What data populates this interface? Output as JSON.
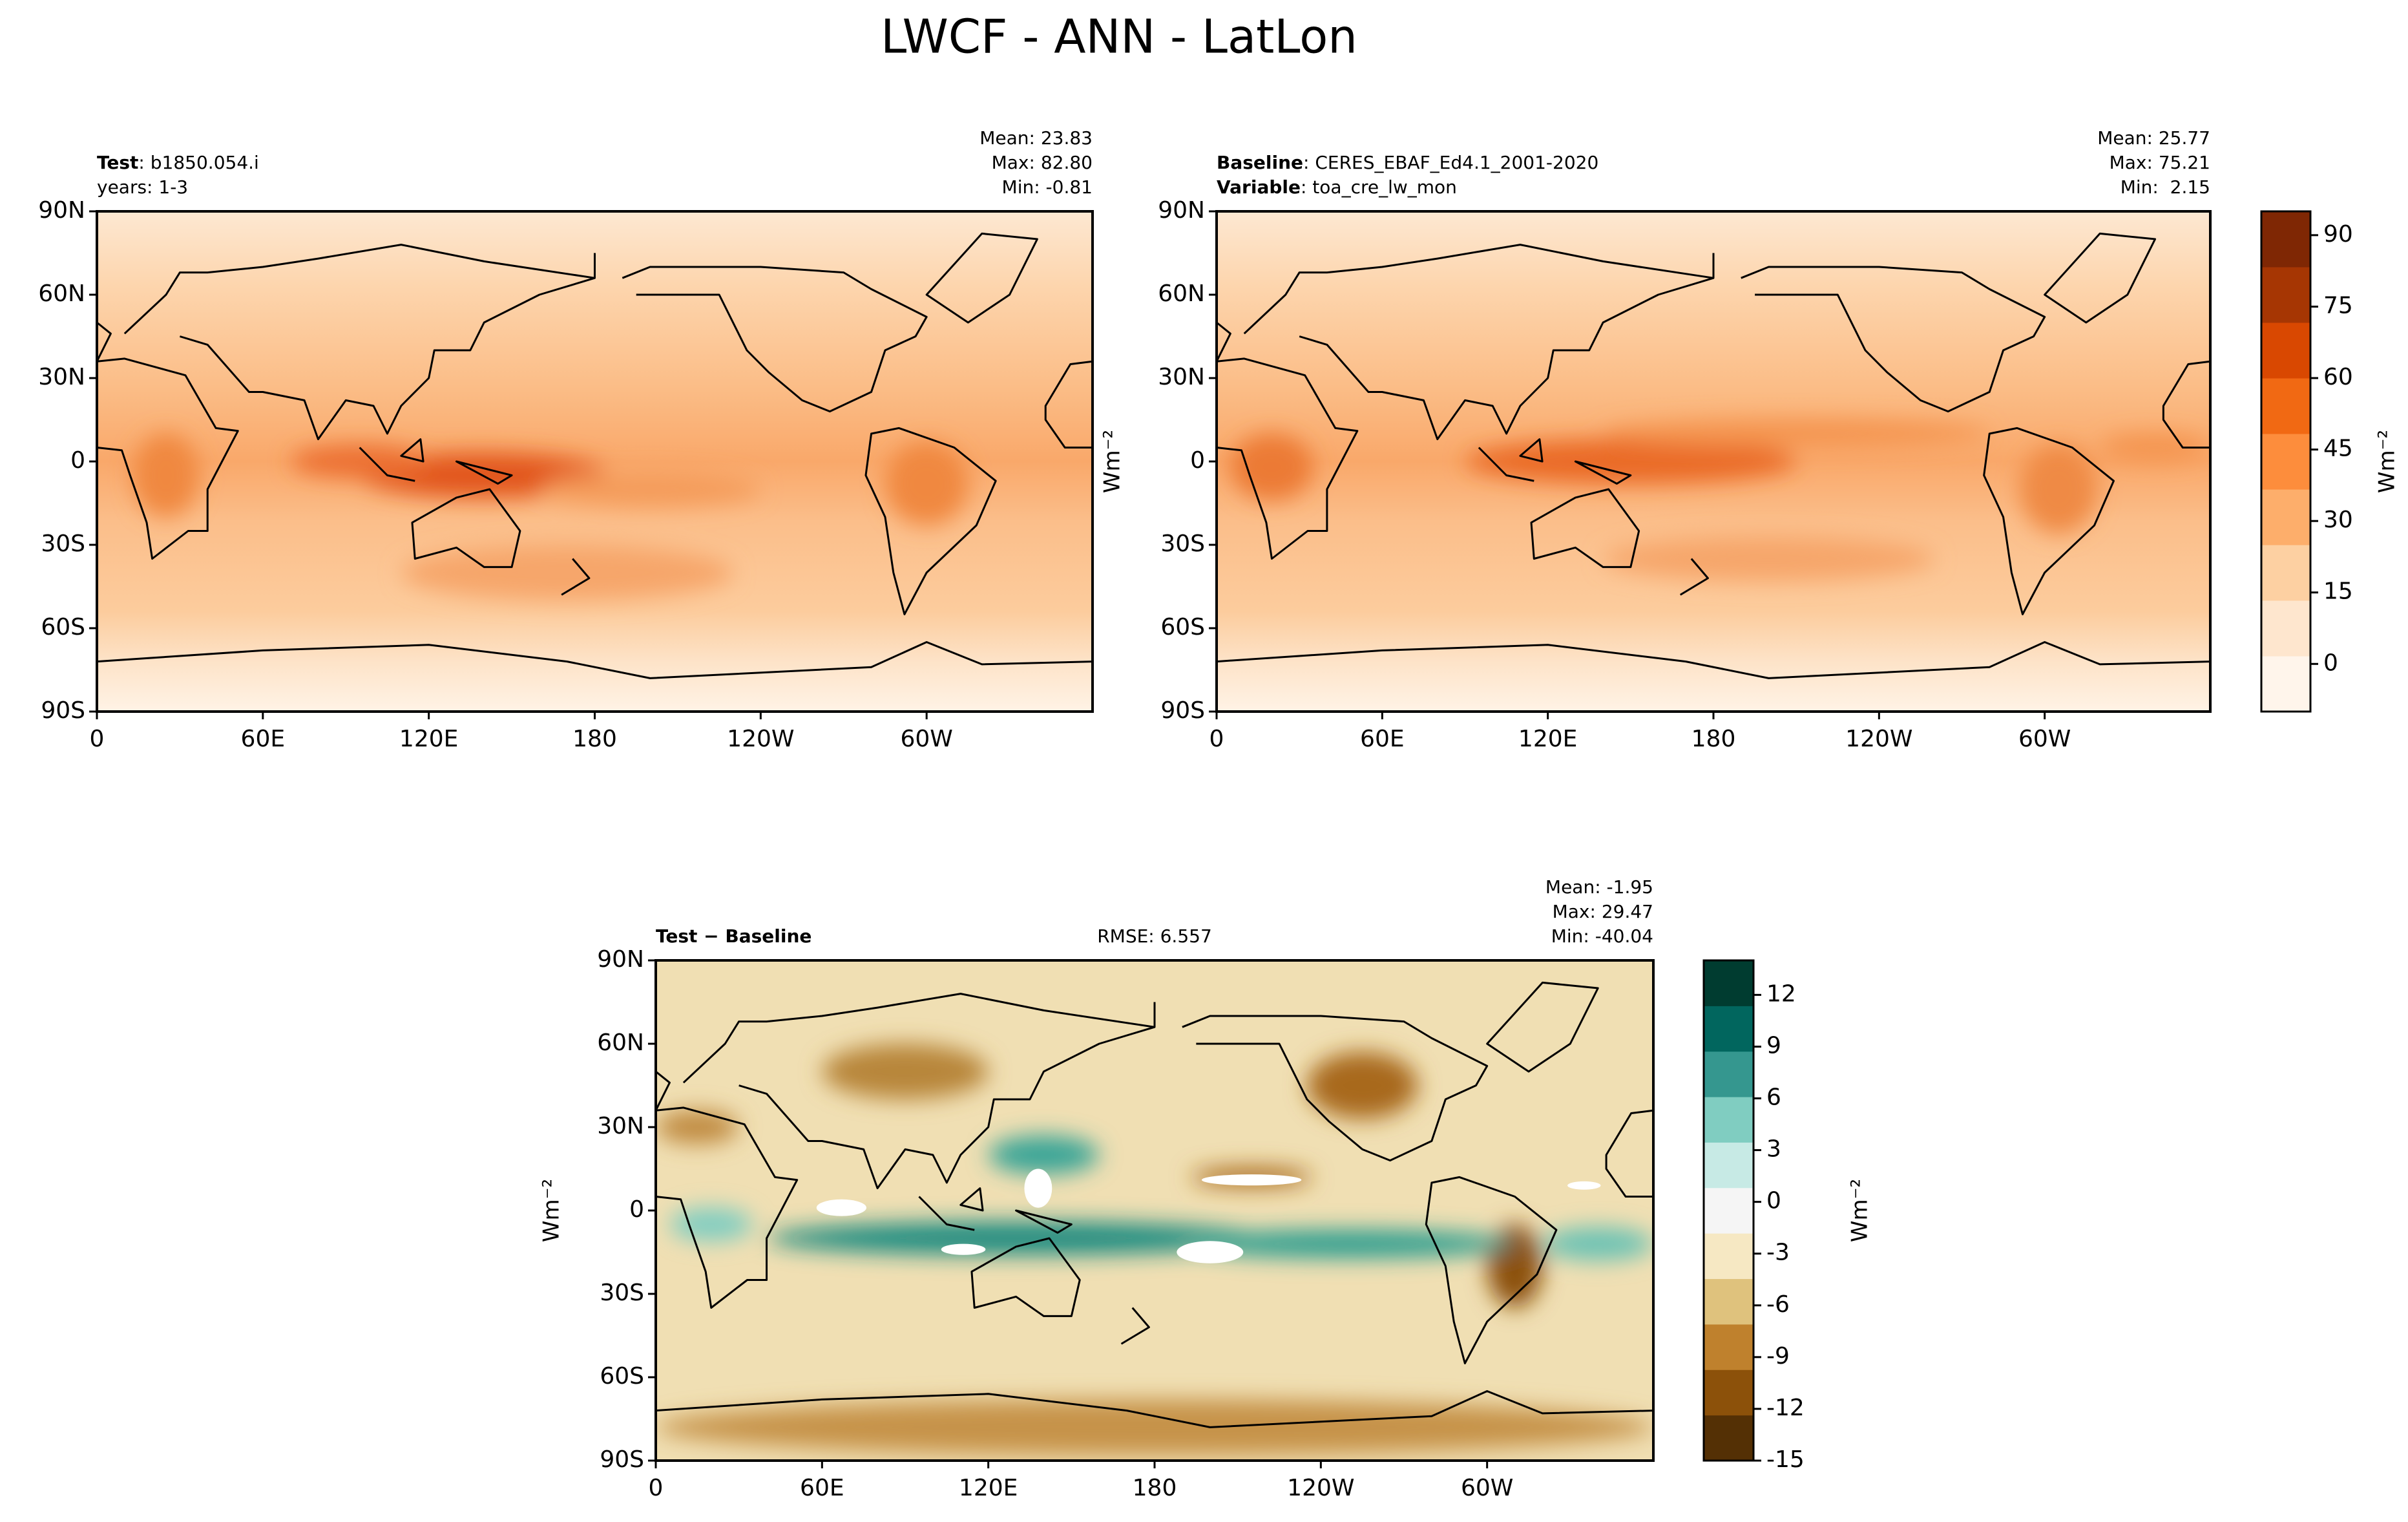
{
  "title": "LWCF - ANN - LatLon",
  "chart_data": [
    {
      "type": "map",
      "left_lines": [
        {
          "bold": "Test",
          "text": ": b1850.054.i"
        },
        {
          "text": "years: 1-3"
        }
      ],
      "stats": [
        "Mean: 23.83",
        "Max: 82.80",
        "Min: -0.81"
      ],
      "xlim": [
        0,
        360
      ],
      "ylim": [
        -90,
        90
      ],
      "xticks": [
        0,
        {
          "value": 60,
          "label": "60E"
        },
        {
          "value": 120,
          "label": "120E"
        },
        180,
        {
          "value": 240,
          "label": "120W"
        },
        {
          "value": 300,
          "label": "60W"
        }
      ],
      "yticks": [
        {
          "value": -90,
          "label": "90S"
        },
        {
          "value": -60,
          "label": "60S"
        },
        {
          "value": -30,
          "label": "30S"
        },
        0,
        {
          "value": 30,
          "label": "30N"
        },
        {
          "value": 60,
          "label": "60N"
        },
        {
          "value": 90,
          "label": "90N"
        }
      ]
    },
    {
      "type": "map",
      "left_lines": [
        {
          "bold": "Baseline",
          "text": ": CERES_EBAF_Ed4.1_2001-2020"
        },
        {
          "bold": "Variable",
          "text": ": toa_cre_lw_mon"
        }
      ],
      "stats": [
        "Mean: 25.77",
        "Max: 75.21",
        "Min:  2.15"
      ],
      "ylabel": "Wm⁻²",
      "xlim": [
        0,
        360
      ],
      "ylim": [
        -90,
        90
      ],
      "xticks": [
        0,
        {
          "value": 60,
          "label": "60E"
        },
        {
          "value": 120,
          "label": "120E"
        },
        180,
        {
          "value": 240,
          "label": "120W"
        },
        {
          "value": 300,
          "label": "60W"
        }
      ],
      "yticks": [
        {
          "value": -90,
          "label": "90S"
        },
        {
          "value": -60,
          "label": "60S"
        },
        {
          "value": -30,
          "label": "30S"
        },
        0,
        {
          "value": 30,
          "label": "30N"
        },
        {
          "value": 60,
          "label": "60N"
        },
        {
          "value": 90,
          "label": "90N"
        }
      ],
      "colorbar": {
        "label": "Wm⁻²",
        "lim": [
          -10,
          95
        ],
        "ticks": [
          0,
          15,
          30,
          45,
          60,
          75,
          90
        ],
        "colors": [
          "#fff5eb",
          "#fee6ce",
          "#fdd0a2",
          "#fdae6b",
          "#fd8d3c",
          "#f16913",
          "#d94801",
          "#a63603",
          "#7f2704"
        ]
      }
    },
    {
      "type": "map",
      "left_lines": [
        {
          "bold": "Test − Baseline"
        }
      ],
      "center_text": "RMSE: 6.557",
      "stats": [
        "Mean: -1.95",
        "Max: 29.47",
        "Min: -40.04"
      ],
      "ylabel": "Wm⁻²",
      "xlim": [
        0,
        360
      ],
      "ylim": [
        -90,
        90
      ],
      "xticks": [
        0,
        {
          "value": 60,
          "label": "60E"
        },
        {
          "value": 120,
          "label": "120E"
        },
        180,
        {
          "value": 240,
          "label": "120W"
        },
        {
          "value": 300,
          "label": "60W"
        }
      ],
      "yticks": [
        {
          "value": -90,
          "label": "90S"
        },
        {
          "value": -60,
          "label": "60S"
        },
        {
          "value": -30,
          "label": "30S"
        },
        0,
        {
          "value": 30,
          "label": "30N"
        },
        {
          "value": 60,
          "label": "60N"
        },
        {
          "value": 90,
          "label": "90N"
        }
      ],
      "colorbar": {
        "label": "Wm⁻²",
        "lim": [
          -15,
          14
        ],
        "ticks": [
          -15,
          -12,
          -9,
          -6,
          -3,
          0,
          3,
          6,
          9,
          12
        ],
        "colors": [
          "#543005",
          "#8c510a",
          "#bf812d",
          "#dfc27d",
          "#f6e8c3",
          "#f5f5f5",
          "#c7eae5",
          "#80cdc1",
          "#35978f",
          "#01665e",
          "#003c30"
        ]
      }
    }
  ]
}
